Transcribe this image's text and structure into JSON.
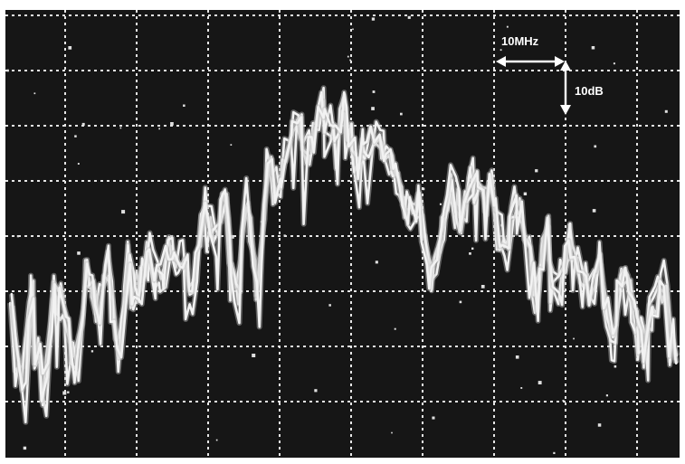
{
  "chart_data": {
    "type": "line",
    "title": "",
    "xlabel": "",
    "ylabel": "",
    "grid": true,
    "background": "#161616",
    "trace_color": "#f2f2f2",
    "grid_divisions": {
      "x": 9.4,
      "y": 8.1
    },
    "scale": {
      "horizontal_label": "10MHz",
      "vertical_label": "10dB"
    },
    "series": [
      {
        "x": [
          0.0,
          0.15,
          0.3,
          0.45,
          0.6,
          0.75,
          0.9,
          1.05,
          1.2,
          1.35,
          1.5,
          1.65,
          1.8,
          1.95,
          2.1,
          2.25,
          2.4,
          2.55,
          2.7,
          2.85,
          3.0,
          3.15,
          3.3,
          3.45,
          3.6,
          3.75,
          3.9,
          4.05,
          4.2,
          4.35,
          4.5,
          4.65,
          4.8,
          4.95,
          5.1,
          5.25,
          5.4,
          5.55,
          5.7,
          5.85,
          6.0,
          6.15,
          6.3,
          6.45,
          6.6,
          6.75,
          6.9,
          7.05,
          7.2,
          7.35,
          7.5,
          7.65,
          7.8,
          7.95,
          8.1,
          8.25,
          8.4,
          8.55,
          8.7,
          8.85,
          9.0,
          9.15,
          9.3
        ],
        "y": [
          2.4,
          1.2,
          2.7,
          1.0,
          2.8,
          2.4,
          1.4,
          3.0,
          2.5,
          3.2,
          1.6,
          3.3,
          2.8,
          3.5,
          3.0,
          3.6,
          3.3,
          2.6,
          4.4,
          3.7,
          4.4,
          2.7,
          4.5,
          2.7,
          5.0,
          4.5,
          5.7,
          5.6,
          5.2,
          6.1,
          5.6,
          6.0,
          5.2,
          5.4,
          5.6,
          5.3,
          4.8,
          4.2,
          4.4,
          3.1,
          3.5,
          4.7,
          4.1,
          4.8,
          4.4,
          4.6,
          3.4,
          4.3,
          3.9,
          2.5,
          3.9,
          2.7,
          3.6,
          3.2,
          2.8,
          3.3,
          1.8,
          3.1,
          2.5,
          1.6,
          2.6,
          3.0,
          1.5
        ]
      }
    ]
  }
}
